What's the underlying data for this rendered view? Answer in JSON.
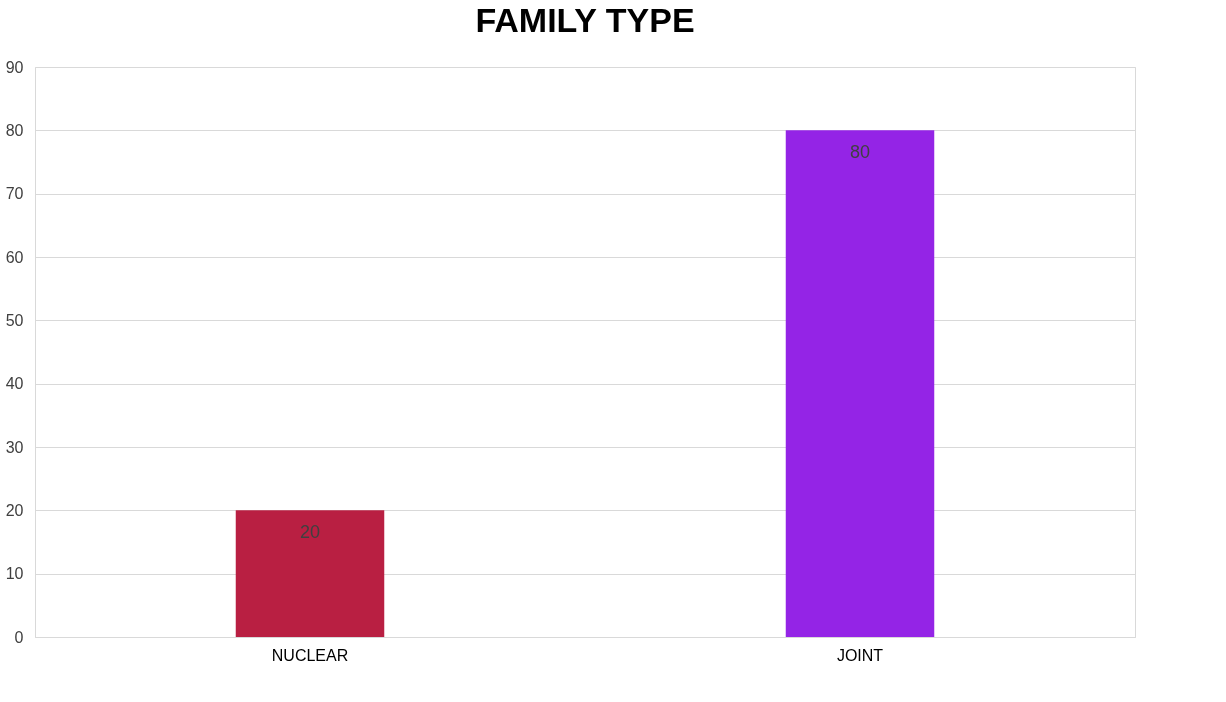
{
  "chart_data": {
    "type": "bar",
    "title": "FAMILY TYPE",
    "categories": [
      "NUCLEAR",
      "JOINT"
    ],
    "values": [
      20,
      80
    ],
    "colors": [
      "#b91f42",
      "#9424e6"
    ],
    "ylim": [
      0,
      90
    ],
    "yticks": [
      0,
      10,
      20,
      30,
      40,
      50,
      60,
      70,
      80,
      90
    ],
    "grid": "y",
    "data_labels": true
  }
}
